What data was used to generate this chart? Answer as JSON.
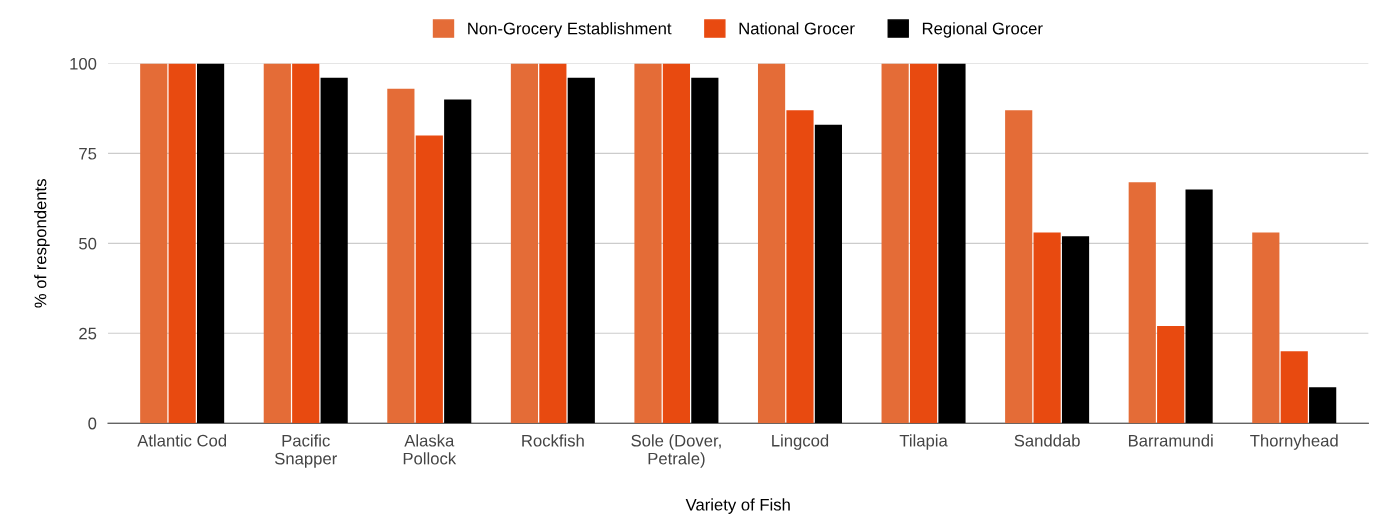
{
  "chart_data": {
    "type": "bar",
    "xlabel": "Variety of Fish",
    "ylabel": "% of respondents",
    "categories": [
      "Atlantic Cod",
      "Pacific\nSnapper",
      "Alaska\nPollock",
      "Rockfish",
      "Sole (Dover,\nPetrale)",
      "Lingcod",
      "Tilapia",
      "Sanddab",
      "Barramundi",
      "Thornyhead"
    ],
    "series": [
      {
        "name": "Non-Grocery Establishment",
        "color": "#e46c37",
        "values": [
          100,
          100,
          93,
          100,
          100,
          100,
          100,
          87,
          67,
          53
        ]
      },
      {
        "name": "National Grocer",
        "color": "#e84a10",
        "values": [
          100,
          100,
          80,
          100,
          100,
          87,
          100,
          53,
          27,
          20
        ]
      },
      {
        "name": "Regional Grocer",
        "color": "#000000",
        "values": [
          100,
          96,
          90,
          96,
          96,
          83,
          100,
          52,
          65,
          10
        ]
      }
    ],
    "ylim": [
      0,
      100
    ],
    "yticks": [
      0,
      25,
      50,
      75,
      100
    ],
    "grid": "y",
    "legend": "top"
  }
}
